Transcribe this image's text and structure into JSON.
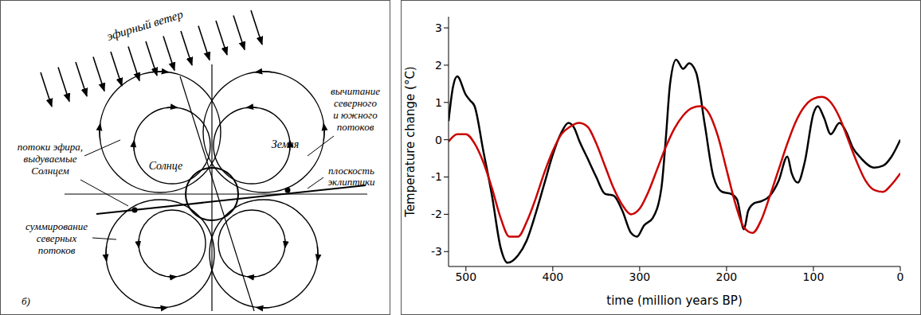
{
  "diagram": {
    "wind": "эфирный ветер",
    "subtraction": [
      "вычитание",
      "северного",
      "и южного",
      "потоков"
    ],
    "sun": "Солнце",
    "earth": "Земля",
    "ecliptic": [
      "плоскость",
      "эклиптики"
    ],
    "outflow": [
      "потоки эфира,",
      "выдуваемые",
      "Солнцем"
    ],
    "summation": [
      "суммирование",
      "северных",
      "потоков"
    ],
    "panel": "б)"
  },
  "chart_data": {
    "type": "line",
    "xlabel": "time (million years BP)",
    "ylabel": "Temperature change (°C)",
    "xlim": [
      520,
      0
    ],
    "ylim": [
      -3.4,
      3.3
    ],
    "xticks": [
      500,
      400,
      300,
      200,
      100,
      0
    ],
    "yticks": [
      -3,
      -2,
      -1,
      0,
      1,
      2,
      3
    ],
    "grid": false,
    "series": [
      {
        "color": "#000000",
        "x": [
          520,
          515,
          510,
          500,
          495,
          490,
          480,
          470,
          460,
          452,
          440,
          430,
          420,
          410,
          400,
          390,
          382,
          375,
          370,
          360,
          350,
          340,
          330,
          320,
          310,
          303,
          295,
          285,
          275,
          270,
          265,
          258,
          250,
          243,
          235,
          225,
          215,
          205,
          195,
          188,
          180,
          175,
          168,
          160,
          150,
          140,
          130,
          125,
          118,
          110,
          100,
          95,
          88,
          80,
          70,
          62,
          55,
          45,
          30,
          20,
          10,
          0
        ],
        "values": [
          0.5,
          1.4,
          1.7,
          1.2,
          1.05,
          0.9,
          -0.3,
          -1.5,
          -2.9,
          -3.3,
          -3.1,
          -2.7,
          -2.0,
          -1.2,
          -0.4,
          0.2,
          0.45,
          0.3,
          0.0,
          -0.5,
          -1.0,
          -1.45,
          -1.5,
          -1.9,
          -2.5,
          -2.6,
          -2.3,
          -2.1,
          -1.3,
          0.0,
          1.5,
          2.15,
          1.9,
          2.05,
          1.8,
          0.4,
          -1.0,
          -1.4,
          -1.45,
          -1.6,
          -2.4,
          -1.9,
          -1.7,
          -1.65,
          -1.5,
          -1.1,
          -0.45,
          -0.9,
          -1.15,
          -0.6,
          0.7,
          0.9,
          0.6,
          0.15,
          0.45,
          0.2,
          -0.2,
          -0.5,
          -0.75,
          -0.7,
          -0.45,
          0.0
        ]
      },
      {
        "color": "#cc0000",
        "x": [
          520,
          510,
          500,
          490,
          480,
          470,
          460,
          450,
          440,
          430,
          420,
          410,
          400,
          390,
          380,
          370,
          360,
          350,
          340,
          330,
          320,
          310,
          300,
          290,
          280,
          270,
          260,
          250,
          240,
          230,
          220,
          210,
          200,
          190,
          180,
          170,
          160,
          150,
          140,
          130,
          120,
          110,
          100,
          90,
          80,
          70,
          60,
          50,
          40,
          30,
          20,
          10,
          0
        ],
        "values": [
          -0.05,
          0.15,
          0.15,
          -0.1,
          -0.6,
          -1.3,
          -2.1,
          -2.6,
          -2.6,
          -2.2,
          -1.6,
          -0.9,
          -0.3,
          0.15,
          0.35,
          0.45,
          0.35,
          -0.1,
          -0.7,
          -1.3,
          -1.75,
          -2.0,
          -1.85,
          -1.4,
          -0.8,
          -0.2,
          0.3,
          0.65,
          0.85,
          0.9,
          0.7,
          0.1,
          -0.8,
          -1.7,
          -2.35,
          -2.5,
          -2.15,
          -1.5,
          -0.8,
          -0.1,
          0.5,
          0.9,
          1.1,
          1.15,
          1.0,
          0.6,
          0.0,
          -0.6,
          -1.1,
          -1.35,
          -1.4,
          -1.2,
          -0.9
        ]
      }
    ]
  }
}
